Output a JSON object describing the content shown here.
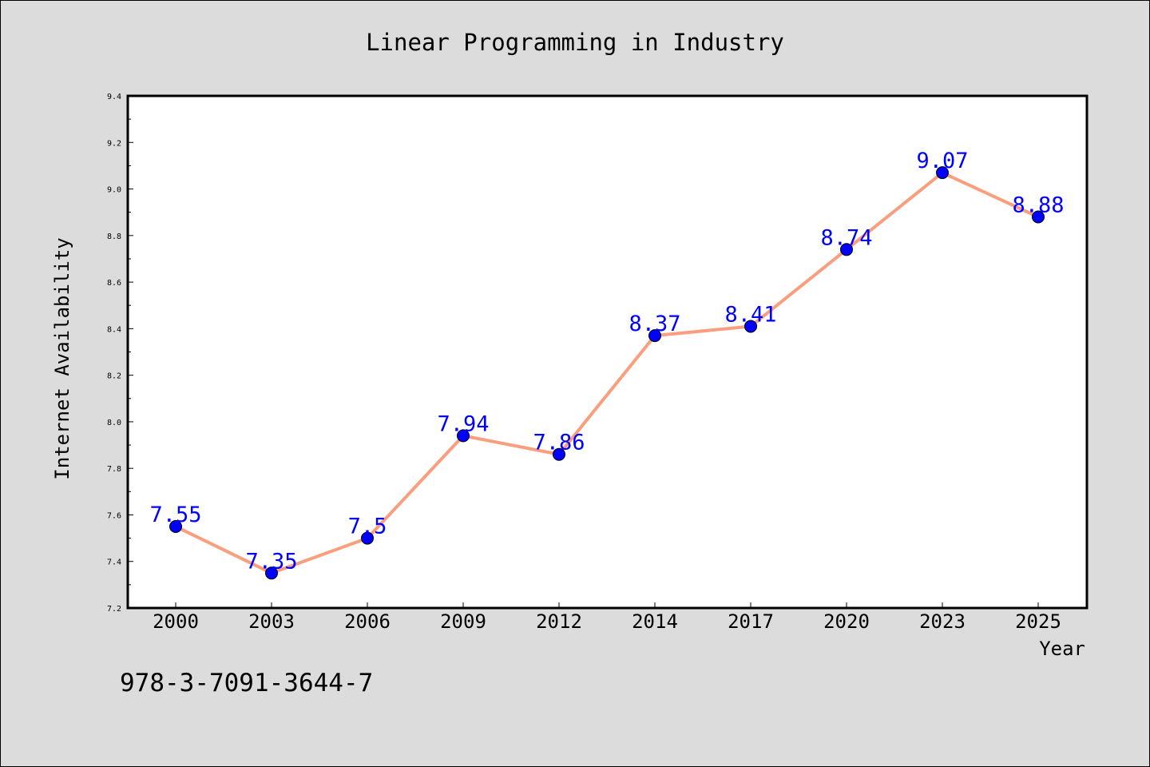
{
  "chart_data": {
    "type": "line",
    "title": "Linear Programming in Industry",
    "xlabel": "Year",
    "ylabel": "Internet Availability",
    "categories": [
      "2000",
      "2003",
      "2006",
      "2009",
      "2012",
      "2014",
      "2017",
      "2020",
      "2023",
      "2025"
    ],
    "series": [
      {
        "values": [
          7.55,
          7.35,
          7.5,
          7.94,
          7.86,
          8.37,
          8.41,
          8.74,
          9.07,
          8.88
        ],
        "labels": [
          "7.55",
          "7.35",
          "7.5",
          "7.94",
          "7.86",
          "8.37",
          "8.41",
          "8.74",
          "9.07",
          "8.88"
        ],
        "line_color": "#fa9e7e",
        "marker_color": "#0000ff",
        "label_color": "#0000ff"
      }
    ],
    "ylim": [
      7.2,
      9.4
    ],
    "yticks": [
      "7.2",
      "7.4",
      "7.6",
      "7.8",
      "8.0",
      "8.2",
      "8.4",
      "8.6",
      "8.8",
      "9.0",
      "9.2",
      "9.4"
    ],
    "grid": false,
    "legend": "none",
    "annotation": "978-3-7091-3644-7"
  },
  "colors": {
    "background": "#dcdcdc",
    "plot_background": "#ffffff",
    "axis": "#000000"
  }
}
